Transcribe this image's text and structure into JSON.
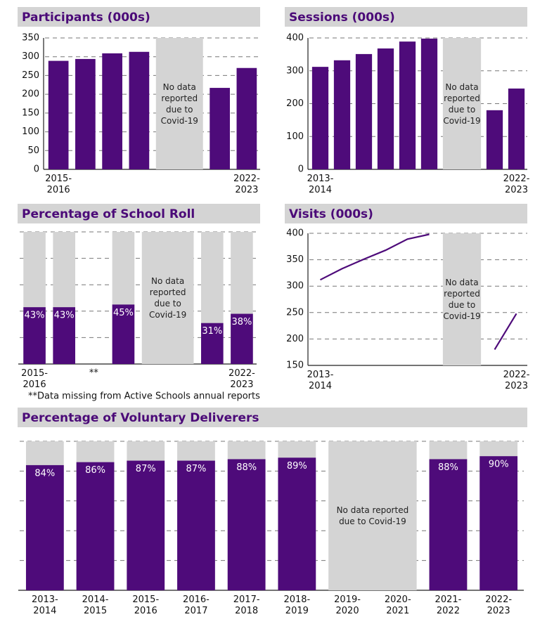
{
  "chart_data": [
    {
      "type": "bar",
      "title": "Participants (000s)",
      "categories": [
        "2015-2016",
        null,
        null,
        null,
        null,
        null,
        null,
        "2022-2023"
      ],
      "values": [
        289,
        294,
        309,
        313,
        null,
        null,
        217,
        270
      ],
      "color": "#4e0b7a",
      "ylim": [
        0,
        350
      ],
      "yticks": [
        0,
        50,
        100,
        150,
        200,
        250,
        300,
        350
      ],
      "grid": true,
      "annotation": "No data reported due to Covid-19"
    },
    {
      "type": "bar",
      "title": "Sessions (000s)",
      "categories": [
        "2013-2014",
        null,
        null,
        null,
        null,
        null,
        null,
        null,
        null,
        "2022-2023"
      ],
      "values": [
        312,
        332,
        351,
        368,
        389,
        398,
        null,
        null,
        180,
        246
      ],
      "color": "#4e0b7a",
      "ylim": [
        0,
        400
      ],
      "yticks": [
        0,
        100,
        200,
        300,
        400
      ],
      "grid": true,
      "annotation": "No data reported due to Covid-19"
    },
    {
      "type": "bar",
      "title": "Percentage of School Roll",
      "categories": [
        "2015-2016",
        null,
        "**",
        null,
        null,
        null,
        null,
        "2022-2023"
      ],
      "values": [
        43,
        43,
        null,
        45,
        null,
        null,
        31,
        38
      ],
      "value_labels": [
        "43%",
        "43%",
        null,
        "45%",
        null,
        null,
        "31%",
        "38%"
      ],
      "color": "#4e0b7a",
      "track_color": "#d4d4d4",
      "ylim": [
        0,
        100
      ],
      "yticks": [
        0,
        20,
        40,
        60,
        80,
        100
      ],
      "tick_labels": false,
      "grid": true,
      "annotation": "No data reported due to Covid-19",
      "note": "**Data missing from Active Schools annual reports"
    },
    {
      "type": "line",
      "title": "Visits (000s)",
      "categories": [
        "2013-2014",
        null,
        null,
        null,
        null,
        null,
        null,
        null,
        null,
        "2022-2023"
      ],
      "values": [
        312,
        333,
        351,
        368,
        389,
        398,
        null,
        null,
        180,
        248
      ],
      "color": "#4e0b7a",
      "ylim": [
        150,
        400
      ],
      "yticks": [
        150,
        200,
        250,
        300,
        350,
        400
      ],
      "grid": true,
      "annotation": "No data reported due to Covid-19"
    },
    {
      "type": "bar",
      "title": "Percentage of Voluntary Deliverers",
      "categories": [
        "2013-2014",
        "2014-2015",
        "2015-2016",
        "2016-2017",
        "2017-2018",
        "2018-2019",
        "2019-2020",
        "2020-2021",
        "2021-2022",
        "2022-2023"
      ],
      "values": [
        84,
        86,
        87,
        87,
        88,
        89,
        null,
        null,
        88,
        90
      ],
      "value_labels": [
        "84%",
        "86%",
        "87%",
        "87%",
        "88%",
        "89%",
        null,
        null,
        "88%",
        "90%"
      ],
      "color": "#4e0b7a",
      "track_color": "#d4d4d4",
      "ylim": [
        0,
        100
      ],
      "yticks": [
        0,
        20,
        40,
        60,
        80,
        100
      ],
      "tick_labels": false,
      "grid": true,
      "annotation": "No data reported due to Covid-19"
    }
  ]
}
